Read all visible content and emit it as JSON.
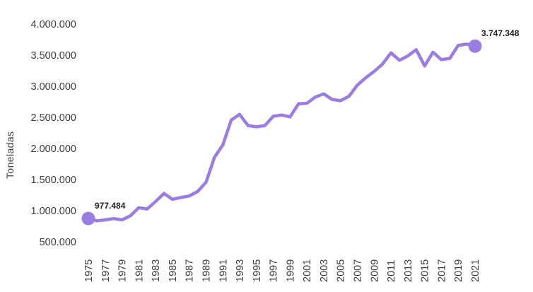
{
  "chart_data": {
    "type": "line",
    "title": "",
    "xlabel": "",
    "ylabel": "Toneladas",
    "legend": false,
    "grid": false,
    "background": "#ffffff",
    "line_color": "#9b7ce2",
    "marker_color": "#9b7ce2",
    "x": [
      1975,
      1976,
      1977,
      1978,
      1979,
      1980,
      1981,
      1982,
      1983,
      1984,
      1985,
      1986,
      1987,
      1988,
      1989,
      1990,
      1991,
      1992,
      1993,
      1994,
      1995,
      1996,
      1997,
      1998,
      1999,
      2000,
      2001,
      2002,
      2003,
      2004,
      2005,
      2006,
      2007,
      2008,
      2009,
      2010,
      2011,
      2012,
      2013,
      2014,
      2015,
      2016,
      2017,
      2018,
      2019,
      2020,
      2021
    ],
    "series": [
      {
        "name": "Toneladas",
        "values": [
          977484,
          940000,
          955000,
          975000,
          955000,
          1020000,
          1150000,
          1130000,
          1250000,
          1380000,
          1285000,
          1315000,
          1340000,
          1410000,
          1560000,
          1960000,
          2160000,
          2560000,
          2650000,
          2470000,
          2450000,
          2470000,
          2620000,
          2640000,
          2610000,
          2820000,
          2830000,
          2930000,
          2980000,
          2890000,
          2870000,
          2940000,
          3120000,
          3240000,
          3340000,
          3460000,
          3640000,
          3520000,
          3590000,
          3690000,
          3430000,
          3650000,
          3530000,
          3550000,
          3760000,
          3780000,
          3747348
        ]
      }
    ],
    "ylim": [
      500000,
      4000000
    ],
    "yticks": [
      4000000,
      3500000,
      3000000,
      2500000,
      2000000,
      1500000,
      1000000,
      500000
    ],
    "ytick_labels": [
      "4.000.000",
      "3.500.000",
      "3.000.000",
      "2.500.000",
      "2.000.000",
      "1.500.000",
      "1.000.000",
      "500.000"
    ],
    "xticks": [
      1975,
      1977,
      1979,
      1981,
      1983,
      1985,
      1987,
      1989,
      1991,
      1993,
      1995,
      1997,
      1999,
      2001,
      2003,
      2005,
      2007,
      2009,
      2011,
      2013,
      2015,
      2017,
      2019,
      2021
    ],
    "xtick_labels": [
      "1975",
      "1977",
      "1979",
      "1981",
      "1983",
      "1985",
      "1987",
      "1989",
      "1991",
      "1993",
      "1995",
      "1997",
      "1999",
      "2001",
      "2003",
      "2005",
      "2007",
      "2009",
      "2011",
      "2013",
      "2015",
      "2017",
      "2019",
      "2021"
    ],
    "annotations": [
      {
        "year": 1975,
        "value": 977484,
        "label": "977.484"
      },
      {
        "year": 2021,
        "value": 3747348,
        "label": "3.747.348"
      }
    ]
  }
}
